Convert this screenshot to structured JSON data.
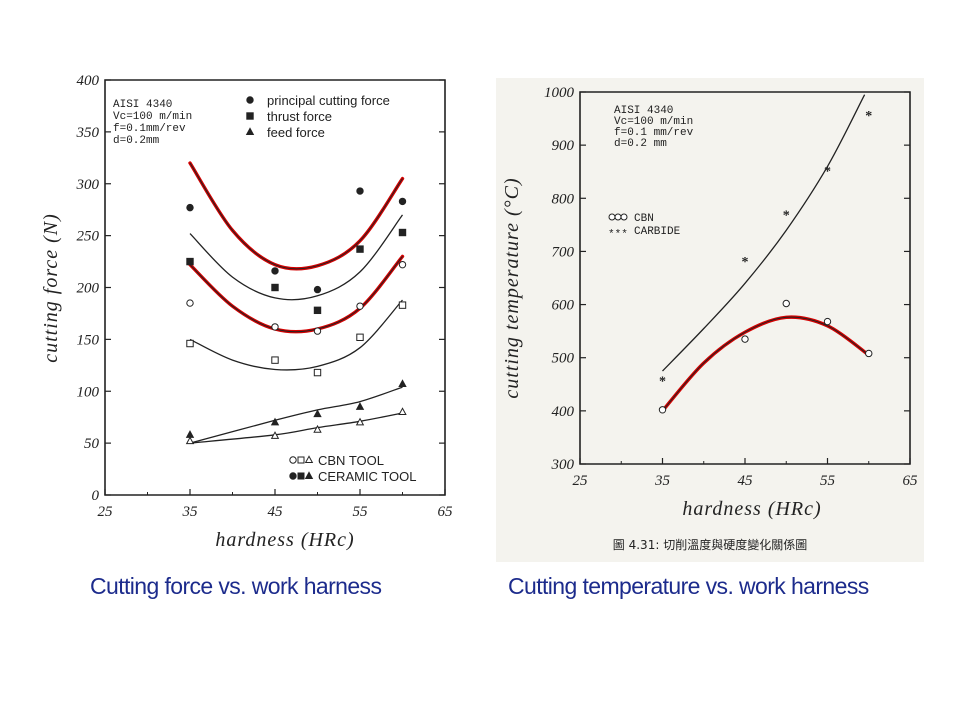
{
  "captions": {
    "left": "Cutting force vs. work harness",
    "right": "Cutting temperature vs. work harness"
  },
  "colors": {
    "caption": "#1c2b8c",
    "highlight": "#d40000",
    "ink": "#222222"
  },
  "chart_data": [
    {
      "type": "scatter",
      "xlabel": "hardness (HRc)",
      "ylabel": "cutting force (N)",
      "xlim": [
        25,
        65
      ],
      "ylim": [
        0,
        400
      ],
      "x_ticks": [
        25,
        35,
        45,
        55,
        65
      ],
      "y_ticks": [
        0,
        50,
        100,
        150,
        200,
        250,
        300,
        350,
        400
      ],
      "conditions": [
        "AISI 4340",
        "Vc=100 m/min",
        "f=0.1mm/rev",
        "d=0.2mm"
      ],
      "legend_forces": [
        "principal cutting force",
        "thrust force",
        "feed force"
      ],
      "legend_tools": [
        "CBN TOOL",
        "CERAMIC TOOL"
      ],
      "series": [
        {
          "name": "principal cutting force",
          "tool": "CERAMIC TOOL",
          "marker": "circle-filled",
          "highlighted": true,
          "x": [
            35,
            45,
            50,
            55,
            60
          ],
          "y": [
            277,
            216,
            198,
            293,
            283
          ],
          "fit": [
            [
              35,
              320
            ],
            [
              40,
              255
            ],
            [
              45,
              222
            ],
            [
              50,
              221
            ],
            [
              55,
              245
            ],
            [
              60,
              305
            ]
          ]
        },
        {
          "name": "principal cutting force",
          "tool": "CBN TOOL",
          "marker": "circle-open",
          "highlighted": true,
          "x": [
            35,
            45,
            50,
            55,
            60
          ],
          "y": [
            185,
            162,
            158,
            182,
            222
          ],
          "fit": [
            [
              35,
              222
            ],
            [
              40,
              182
            ],
            [
              45,
              160
            ],
            [
              50,
              160
            ],
            [
              55,
              180
            ],
            [
              60,
              230
            ]
          ]
        },
        {
          "name": "thrust force",
          "tool": "CERAMIC TOOL",
          "marker": "square-filled",
          "highlighted": false,
          "x": [
            35,
            45,
            50,
            55,
            60
          ],
          "y": [
            225,
            200,
            178,
            237,
            253
          ],
          "fit": [
            [
              35,
              252
            ],
            [
              40,
              210
            ],
            [
              45,
              190
            ],
            [
              50,
              192
            ],
            [
              55,
              215
            ],
            [
              60,
              270
            ]
          ]
        },
        {
          "name": "thrust force",
          "tool": "CBN TOOL",
          "marker": "square-open",
          "highlighted": false,
          "x": [
            35,
            45,
            50,
            55,
            60
          ],
          "y": [
            146,
            130,
            118,
            152,
            183
          ],
          "fit": [
            [
              35,
              150
            ],
            [
              40,
              130
            ],
            [
              45,
              121
            ],
            [
              50,
              124
            ],
            [
              55,
              142
            ],
            [
              60,
              188
            ]
          ]
        },
        {
          "name": "feed force",
          "tool": "CERAMIC TOOL",
          "marker": "triangle-filled",
          "highlighted": false,
          "x": [
            35,
            45,
            50,
            55,
            60
          ],
          "y": [
            58,
            70,
            78,
            85,
            107
          ],
          "fit": [
            [
              35,
              50
            ],
            [
              45,
              72
            ],
            [
              50,
              82
            ],
            [
              55,
              90
            ],
            [
              60,
              104
            ]
          ]
        },
        {
          "name": "feed force",
          "tool": "CBN TOOL",
          "marker": "triangle-open",
          "highlighted": false,
          "x": [
            35,
            45,
            50,
            55,
            60
          ],
          "y": [
            52,
            57,
            63,
            70,
            80
          ],
          "fit": [
            [
              35,
              50
            ],
            [
              45,
              58
            ],
            [
              50,
              65
            ],
            [
              55,
              71
            ],
            [
              60,
              79
            ]
          ]
        }
      ]
    },
    {
      "type": "scatter",
      "xlabel": "hardness (HRc)",
      "ylabel": "cutting temperature (°C)",
      "xlim": [
        25,
        65
      ],
      "ylim": [
        300,
        1000
      ],
      "x_ticks": [
        25,
        35,
        45,
        55,
        65
      ],
      "y_ticks": [
        300,
        400,
        500,
        600,
        700,
        800,
        900,
        1000
      ],
      "conditions": [
        "AISI 4340",
        "Vc=100 m/min",
        "f=0.1 mm/rev",
        "d=0.2 mm"
      ],
      "figure_caption": "圖 4.31: 切削溫度與硬度變化關係圖",
      "series": [
        {
          "name": "CBN",
          "marker": "circle-open",
          "highlighted": true,
          "x": [
            35,
            45,
            50,
            55,
            60
          ],
          "y": [
            402,
            535,
            602,
            568,
            508
          ],
          "fit": [
            [
              35,
              400
            ],
            [
              40,
              490
            ],
            [
              45,
              548
            ],
            [
              50,
              576
            ],
            [
              55,
              560
            ],
            [
              60,
              505
            ]
          ]
        },
        {
          "name": "CARBIDE",
          "marker": "asterisk",
          "highlighted": false,
          "x": [
            35,
            45,
            50,
            55,
            60
          ],
          "y": [
            455,
            680,
            768,
            850,
            955
          ],
          "fit": [
            [
              35,
              475
            ],
            [
              40,
              555
            ],
            [
              45,
              640
            ],
            [
              50,
              740
            ],
            [
              55,
              860
            ],
            [
              59.5,
              995
            ]
          ]
        }
      ]
    }
  ]
}
